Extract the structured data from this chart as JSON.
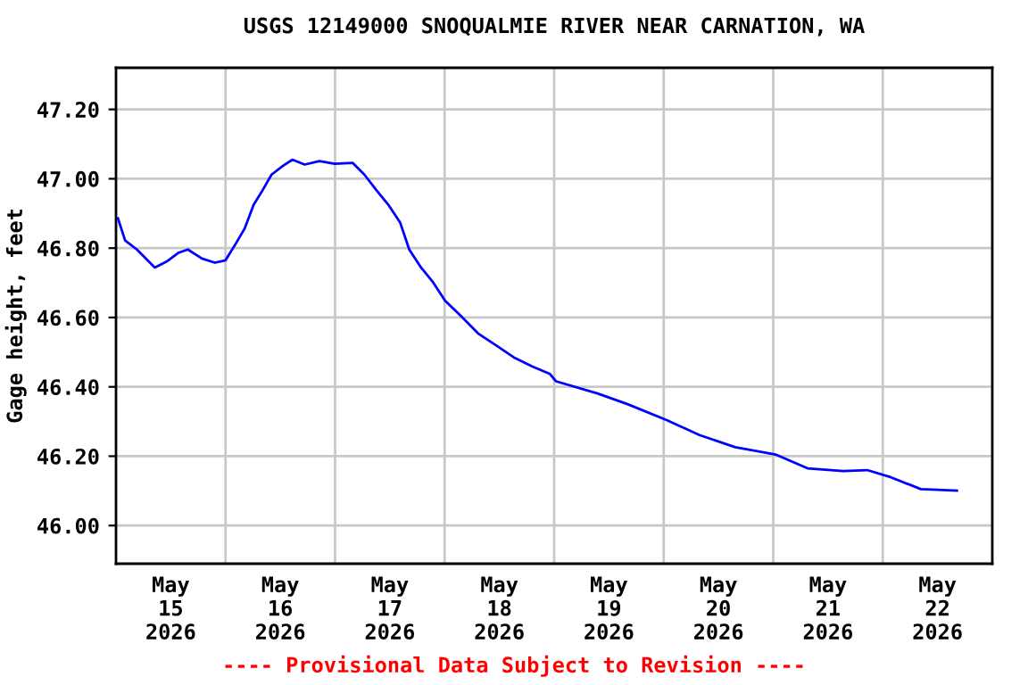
{
  "chart_data": {
    "type": "line",
    "title": "USGS 12149000 SNOQUALMIE RIVER NEAR CARNATION, WA",
    "ylabel": "Gage height, feet",
    "annotations": [
      "---- Provisional Data Subject to Revision ----"
    ],
    "x": [
      "2026-05-15T00:25",
      "2026-05-15T02:00",
      "2026-05-15T04:35",
      "2026-05-15T08:30",
      "2026-05-15T11:05",
      "2026-05-15T13:45",
      "2026-05-15T15:45",
      "2026-05-15T18:50",
      "2026-05-15T21:40",
      "2026-05-16T00:00",
      "2026-05-16T02:15",
      "2026-05-16T04:10",
      "2026-05-16T06:10",
      "2026-05-16T08:10",
      "2026-05-16T10:05",
      "2026-05-16T12:40",
      "2026-05-16T14:40",
      "2026-05-16T17:20",
      "2026-05-16T20:35",
      "2026-05-16T23:55",
      "2026-05-17T03:50",
      "2026-05-17T06:25",
      "2026-05-17T09:00",
      "2026-05-17T11:40",
      "2026-05-17T14:15",
      "2026-05-17T16:15",
      "2026-05-17T18:50",
      "2026-05-17T21:30",
      "2026-05-18T00:05",
      "2026-05-18T03:25",
      "2026-05-18T07:20",
      "2026-05-18T11:15",
      "2026-05-18T15:10",
      "2026-05-18T19:10",
      "2026-05-18T23:05",
      "2026-05-19T00:25",
      "2026-05-19T09:30",
      "2026-05-19T16:05",
      "2026-05-20T00:40",
      "2026-05-20T07:50",
      "2026-05-20T15:40",
      "2026-05-21T00:30",
      "2026-05-21T07:30",
      "2026-05-21T15:20",
      "2026-05-21T20:35",
      "2026-05-22T01:50",
      "2026-05-22T08:20",
      "2026-05-22T16:15"
    ],
    "series": [
      {
        "color": "#0000ff",
        "values": [
          46.886,
          46.822,
          46.796,
          46.744,
          46.761,
          46.787,
          46.796,
          46.77,
          46.758,
          46.765,
          46.813,
          46.856,
          46.925,
          46.968,
          47.012,
          47.038,
          47.055,
          47.041,
          47.051,
          47.043,
          47.046,
          47.012,
          46.968,
          46.925,
          46.874,
          46.796,
          46.744,
          46.701,
          46.649,
          46.606,
          46.554,
          46.52,
          46.485,
          46.459,
          46.437,
          46.416,
          46.381,
          46.35,
          46.304,
          46.261,
          46.226,
          46.205,
          46.165,
          46.157,
          46.16,
          46.139,
          46.105,
          46.101
        ]
      }
    ],
    "xlim": [
      "2026-05-15",
      "2026-05-23"
    ],
    "xticks": [
      {
        "value": "2026-05-15T12:00",
        "label": "May\n15\n2026"
      },
      {
        "value": "2026-05-16T12:00",
        "label": "May\n16\n2026"
      },
      {
        "value": "2026-05-17T12:00",
        "label": "May\n17\n2026"
      },
      {
        "value": "2026-05-18T12:00",
        "label": "May\n18\n2026"
      },
      {
        "value": "2026-05-19T12:00",
        "label": "May\n19\n2026"
      },
      {
        "value": "2026-05-20T12:00",
        "label": "May\n20\n2026"
      },
      {
        "value": "2026-05-21T12:00",
        "label": "May\n21\n2026"
      },
      {
        "value": "2026-05-22T12:00",
        "label": "May\n22\n2026"
      },
      {
        "value": "2026-05-16",
        "label": null
      },
      {
        "value": "2026-05-17",
        "label": null
      },
      {
        "value": "2026-05-18",
        "label": null
      },
      {
        "value": "2026-05-19",
        "label": null
      },
      {
        "value": "2026-05-20",
        "label": null
      },
      {
        "value": "2026-05-21",
        "label": null
      },
      {
        "value": "2026-05-22",
        "label": null
      }
    ],
    "ylim": [
      45.89,
      47.32
    ],
    "yticks": [
      {
        "value": 46.0,
        "label": "46.00"
      },
      {
        "value": 46.2,
        "label": "46.20"
      },
      {
        "value": 46.4,
        "label": "46.40"
      },
      {
        "value": 46.6,
        "label": "46.60"
      },
      {
        "value": 46.8,
        "label": "46.80"
      },
      {
        "value": 47.0,
        "label": "47.00"
      },
      {
        "value": 47.2,
        "label": "47.20"
      }
    ],
    "grid": true,
    "legend": false,
    "line_style": "solid"
  }
}
